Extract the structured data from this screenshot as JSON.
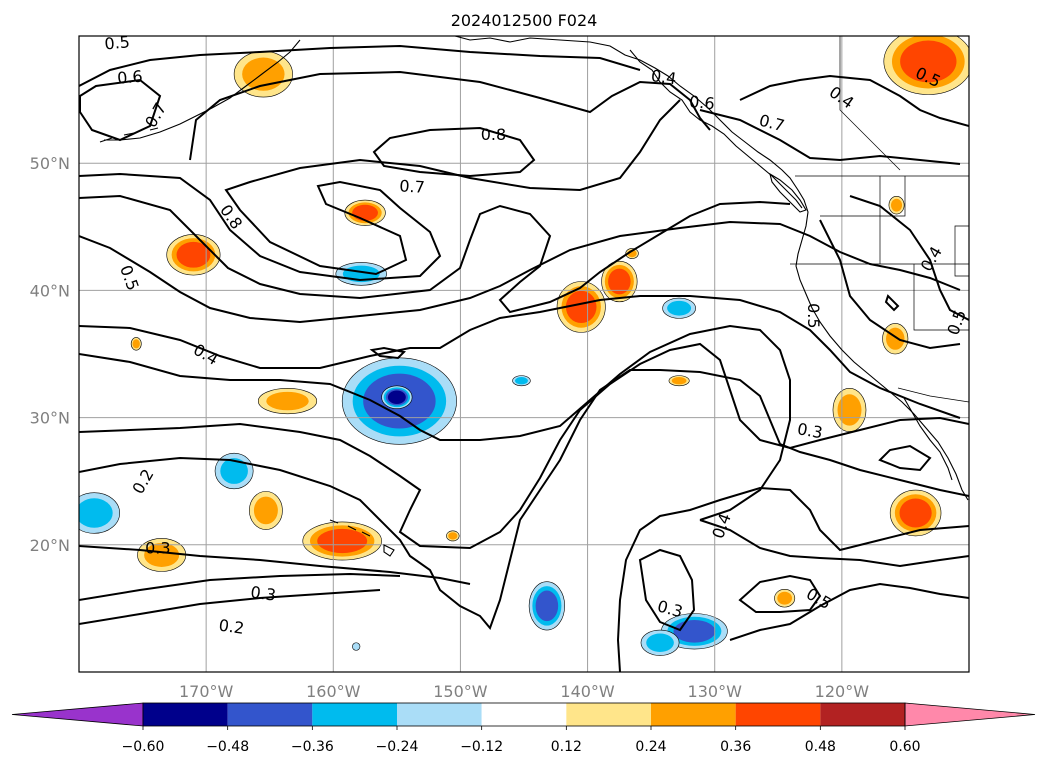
{
  "title": "2024012500 F024",
  "lon_ticks": [
    {
      "lon": -170,
      "label": "170°W"
    },
    {
      "lon": -160,
      "label": "160°W"
    },
    {
      "lon": -150,
      "label": "150°W"
    },
    {
      "lon": -140,
      "label": "140°W"
    },
    {
      "lon": -130,
      "label": "130°W"
    },
    {
      "lon": -120,
      "label": "120°W"
    }
  ],
  "lat_ticks": [
    {
      "lat": 50,
      "label": "50°N"
    },
    {
      "lat": 40,
      "label": "40°N"
    },
    {
      "lat": 30,
      "label": "30°N"
    },
    {
      "lat": 20,
      "label": "20°N"
    }
  ],
  "extent": {
    "lon": [
      -180,
      -110
    ],
    "lat": [
      10,
      60
    ]
  },
  "colorbar": {
    "colors": [
      "#9933cc",
      "#00008b",
      "#3355cc",
      "#00bbee",
      "#aaddf7",
      "#ffffff",
      "#ffe58a",
      "#ffa000",
      "#ff4500",
      "#b22222",
      "#ff88aa"
    ],
    "ticks": [
      "−0.60",
      "−0.48",
      "−0.36",
      "−0.24",
      "−0.12",
      "0.12",
      "0.24",
      "0.36",
      "0.48",
      "0.60"
    ]
  },
  "contour_labels": [
    {
      "text": "0.5",
      "lon": -177,
      "lat": 59.5,
      "rot": -5
    },
    {
      "text": "0.6",
      "lon": -176,
      "lat": 56.8,
      "rot": -5
    },
    {
      "text": "0.7",
      "lon": -174,
      "lat": 53.8,
      "rot": -60
    },
    {
      "text": "0.4",
      "lon": -134,
      "lat": 56.8,
      "rot": 8
    },
    {
      "text": "0.6",
      "lon": -131,
      "lat": 54.8,
      "rot": 5
    },
    {
      "text": "0.7",
      "lon": -125.5,
      "lat": 53.2,
      "rot": 15
    },
    {
      "text": "0.8",
      "lon": -147.4,
      "lat": 52.3,
      "rot": 0
    },
    {
      "text": "0.7",
      "lon": -153.8,
      "lat": 48.2,
      "rot": 3
    },
    {
      "text": "0.8",
      "lon": -168,
      "lat": 45.8,
      "rot": 55
    },
    {
      "text": "0.5",
      "lon": -176,
      "lat": 41,
      "rot": 70
    },
    {
      "text": "0.4",
      "lon": -170,
      "lat": 35,
      "rot": 30
    },
    {
      "text": "0.4",
      "lon": -120,
      "lat": 55.2,
      "rot": 35
    },
    {
      "text": "0.5",
      "lon": -113.2,
      "lat": 56.8,
      "rot": 25
    },
    {
      "text": "0.4",
      "lon": -113,
      "lat": 42.5,
      "rot": -60
    },
    {
      "text": "0.5",
      "lon": -111,
      "lat": 37.5,
      "rot": -70
    },
    {
      "text": "0.5",
      "lon": -122.2,
      "lat": 38,
      "rot": 90
    },
    {
      "text": "0.3",
      "lon": -122.5,
      "lat": 29,
      "rot": 10
    },
    {
      "text": "0.2",
      "lon": -175,
      "lat": 25,
      "rot": -60
    },
    {
      "text": "0.3",
      "lon": -173.8,
      "lat": 19.8,
      "rot": 0
    },
    {
      "text": "0.3",
      "lon": -165.5,
      "lat": 16.2,
      "rot": 8
    },
    {
      "text": "0.2",
      "lon": -168,
      "lat": 13.6,
      "rot": 8
    },
    {
      "text": "0.4",
      "lon": -129.5,
      "lat": 21.5,
      "rot": -70
    },
    {
      "text": "0.3",
      "lon": -133.5,
      "lat": 15,
      "rot": 15
    },
    {
      "text": "0.5",
      "lon": -121.8,
      "lat": 15.8,
      "rot": 30
    }
  ],
  "shaded_areas": [
    {
      "lon": -171,
      "lat": 42.8,
      "rx": 2.1,
      "ry": 1.6,
      "level": 0.36
    },
    {
      "lon": -165.5,
      "lat": 57,
      "rx": 2.3,
      "ry": 1.8,
      "level": 0.24
    },
    {
      "lon": -157.5,
      "lat": 46.1,
      "rx": 1.6,
      "ry": 1.0,
      "level": 0.36
    },
    {
      "lon": -157.8,
      "lat": 41.3,
      "rx": 2.0,
      "ry": 0.9,
      "level": -0.24
    },
    {
      "lon": -140.5,
      "lat": 38.7,
      "rx": 1.9,
      "ry": 2.0,
      "level": 0.36
    },
    {
      "lon": -137.5,
      "lat": 40.7,
      "rx": 1.4,
      "ry": 1.6,
      "level": 0.36
    },
    {
      "lon": -132.8,
      "lat": 38.6,
      "rx": 1.3,
      "ry": 0.8,
      "level": -0.24
    },
    {
      "lon": -136.5,
      "lat": 42.9,
      "rx": 0.5,
      "ry": 0.4,
      "level": 0.24
    },
    {
      "lon": -163.6,
      "lat": 31.3,
      "rx": 2.3,
      "ry": 1.0,
      "level": 0.24
    },
    {
      "lon": -175.5,
      "lat": 35.8,
      "rx": 0.4,
      "ry": 0.5,
      "level": 0.24
    },
    {
      "lon": -154.8,
      "lat": 31.3,
      "rx": 4.5,
      "ry": 3.4,
      "level": -0.36
    },
    {
      "lon": -155,
      "lat": 31.6,
      "rx": 1.2,
      "ry": 0.9,
      "level": -0.6
    },
    {
      "lon": -145.2,
      "lat": 32.9,
      "rx": 0.7,
      "ry": 0.4,
      "level": -0.24
    },
    {
      "lon": -167.8,
      "lat": 25.8,
      "rx": 1.5,
      "ry": 1.4,
      "level": -0.24
    },
    {
      "lon": -178.8,
      "lat": 22.5,
      "rx": 2.0,
      "ry": 1.6,
      "level": -0.24
    },
    {
      "lon": -165.3,
      "lat": 22.7,
      "rx": 1.3,
      "ry": 1.5,
      "level": 0.24
    },
    {
      "lon": -159.3,
      "lat": 20.3,
      "rx": 3.1,
      "ry": 1.5,
      "level": 0.36
    },
    {
      "lon": -173.5,
      "lat": 19.2,
      "rx": 1.9,
      "ry": 1.3,
      "level": 0.24
    },
    {
      "lon": -150.6,
      "lat": 20.7,
      "rx": 0.5,
      "ry": 0.4,
      "level": 0.24
    },
    {
      "lon": -132.8,
      "lat": 32.9,
      "rx": 0.8,
      "ry": 0.4,
      "level": 0.24
    },
    {
      "lon": -143.2,
      "lat": 15.2,
      "rx": 1.4,
      "ry": 1.9,
      "level": -0.36
    },
    {
      "lon": -131.6,
      "lat": 13.2,
      "rx": 2.6,
      "ry": 1.4,
      "level": -0.36
    },
    {
      "lon": -134.3,
      "lat": 12.3,
      "rx": 1.5,
      "ry": 1.0,
      "level": -0.24
    },
    {
      "lon": -124.5,
      "lat": 15.8,
      "rx": 0.8,
      "ry": 0.7,
      "level": 0.24
    },
    {
      "lon": -119.4,
      "lat": 30.6,
      "rx": 1.3,
      "ry": 1.7,
      "level": 0.24
    },
    {
      "lon": -115.8,
      "lat": 36.2,
      "rx": 1.0,
      "ry": 1.2,
      "level": 0.24
    },
    {
      "lon": -115.7,
      "lat": 46.7,
      "rx": 0.6,
      "ry": 0.7,
      "level": 0.24
    },
    {
      "lon": -114.2,
      "lat": 22.5,
      "rx": 2.0,
      "ry": 1.8,
      "level": 0.36
    },
    {
      "lon": -113.2,
      "lat": 58,
      "rx": 3.5,
      "ry": 2.6,
      "level": 0.36
    },
    {
      "lon": -158.2,
      "lat": 12,
      "rx": 0.3,
      "ry": 0.3,
      "level": -0.12
    }
  ]
}
